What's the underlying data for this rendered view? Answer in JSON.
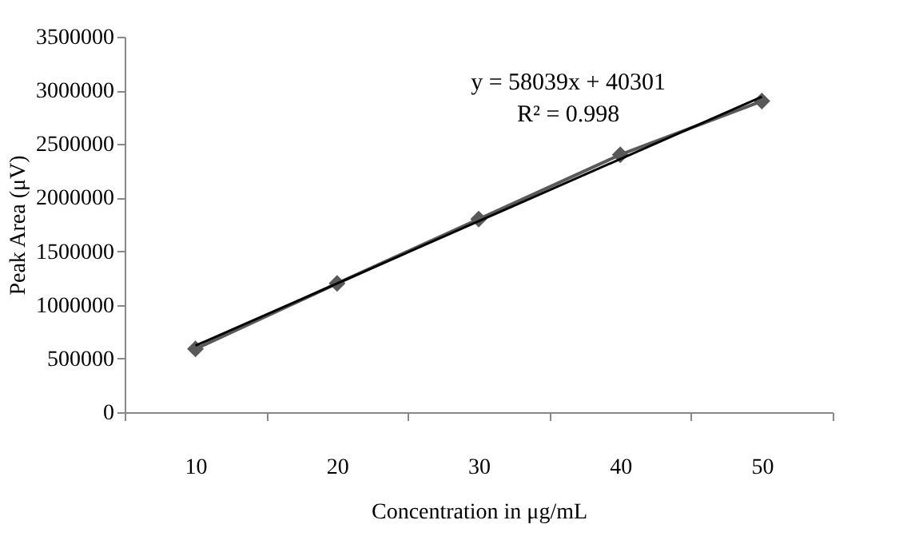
{
  "chart_data": {
    "type": "line",
    "xlabel": "Concentration in μg/mL",
    "ylabel": "Peak Area (μV)",
    "categories": [
      "10",
      "20",
      "30",
      "40",
      "50"
    ],
    "series": [
      {
        "color": "#595959",
        "values": [
          590000,
          1200000,
          1800000,
          2400000,
          2900000
        ],
        "marker": "diamond"
      },
      {
        "color": "#000000",
        "values": [
          620000,
          1200000,
          1780000,
          2360000,
          2940000
        ],
        "marker": "none"
      }
    ],
    "ylim": [
      0,
      3500000
    ],
    "yticks": [
      0,
      500000,
      1000000,
      1500000,
      2000000,
      2500000,
      3000000,
      3500000
    ],
    "annotations": [
      "y = 58039x  + 40301",
      "R² = 0.998"
    ],
    "grid": false
  }
}
